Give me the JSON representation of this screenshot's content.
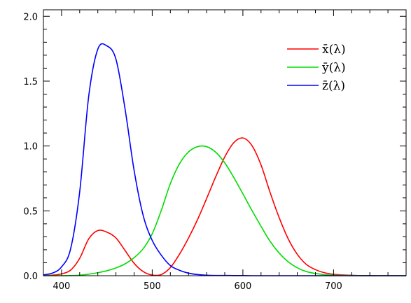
{
  "chart_data": {
    "type": "line",
    "title": "",
    "xlabel": "",
    "ylabel": "",
    "xlim": [
      380,
      780
    ],
    "ylim": [
      0.0,
      2.05
    ],
    "x_ticks": [
      400,
      500,
      600,
      700
    ],
    "x_tick_labels": [
      "400",
      "500",
      "600",
      "700"
    ],
    "y_ticks": [
      0.0,
      0.5,
      1.0,
      1.5,
      2.0
    ],
    "y_tick_labels": [
      "0.0",
      "0.5",
      "1.0",
      "1.5",
      "2.0"
    ],
    "grid": false,
    "legend_position": "top-right",
    "x": [
      380,
      390,
      400,
      410,
      420,
      430,
      440,
      450,
      460,
      470,
      480,
      490,
      500,
      510,
      520,
      530,
      540,
      550,
      560,
      570,
      580,
      590,
      600,
      610,
      620,
      630,
      640,
      650,
      660,
      670,
      680,
      690,
      700,
      710,
      720,
      730,
      740,
      750,
      760,
      770,
      780
    ],
    "series": [
      {
        "name": "x̄(λ)",
        "color": "#ff0000",
        "values": [
          0.001,
          0.004,
          0.014,
          0.043,
          0.134,
          0.284,
          0.348,
          0.336,
          0.291,
          0.195,
          0.096,
          0.032,
          0.005,
          0.009,
          0.063,
          0.165,
          0.29,
          0.433,
          0.595,
          0.762,
          0.916,
          1.026,
          1.062,
          1.003,
          0.854,
          0.642,
          0.448,
          0.284,
          0.165,
          0.087,
          0.047,
          0.023,
          0.011,
          0.006,
          0.003,
          0.001,
          0.001,
          0.0,
          0.0,
          0.0,
          0.0
        ]
      },
      {
        "name": "ȳ(λ)",
        "color": "#00dd00",
        "values": [
          0.0,
          0.0,
          0.0,
          0.001,
          0.004,
          0.012,
          0.023,
          0.038,
          0.06,
          0.091,
          0.139,
          0.208,
          0.323,
          0.503,
          0.71,
          0.862,
          0.954,
          0.995,
          0.995,
          0.952,
          0.87,
          0.757,
          0.631,
          0.503,
          0.381,
          0.265,
          0.175,
          0.107,
          0.061,
          0.032,
          0.017,
          0.008,
          0.004,
          0.002,
          0.001,
          0.0,
          0.0,
          0.0,
          0.0,
          0.0,
          0.0
        ]
      },
      {
        "name": "z̄(λ)",
        "color": "#0000ff",
        "values": [
          0.007,
          0.02,
          0.068,
          0.207,
          0.646,
          1.386,
          1.747,
          1.772,
          1.669,
          1.288,
          0.813,
          0.465,
          0.272,
          0.158,
          0.078,
          0.042,
          0.02,
          0.009,
          0.004,
          0.002,
          0.002,
          0.001,
          0.001,
          0.0,
          0.0,
          0.0,
          0.0,
          0.0,
          0.0,
          0.0,
          0.0,
          0.0,
          0.0,
          0.0,
          0.0,
          0.0,
          0.0,
          0.0,
          0.0,
          0.0,
          0.0
        ]
      }
    ]
  }
}
